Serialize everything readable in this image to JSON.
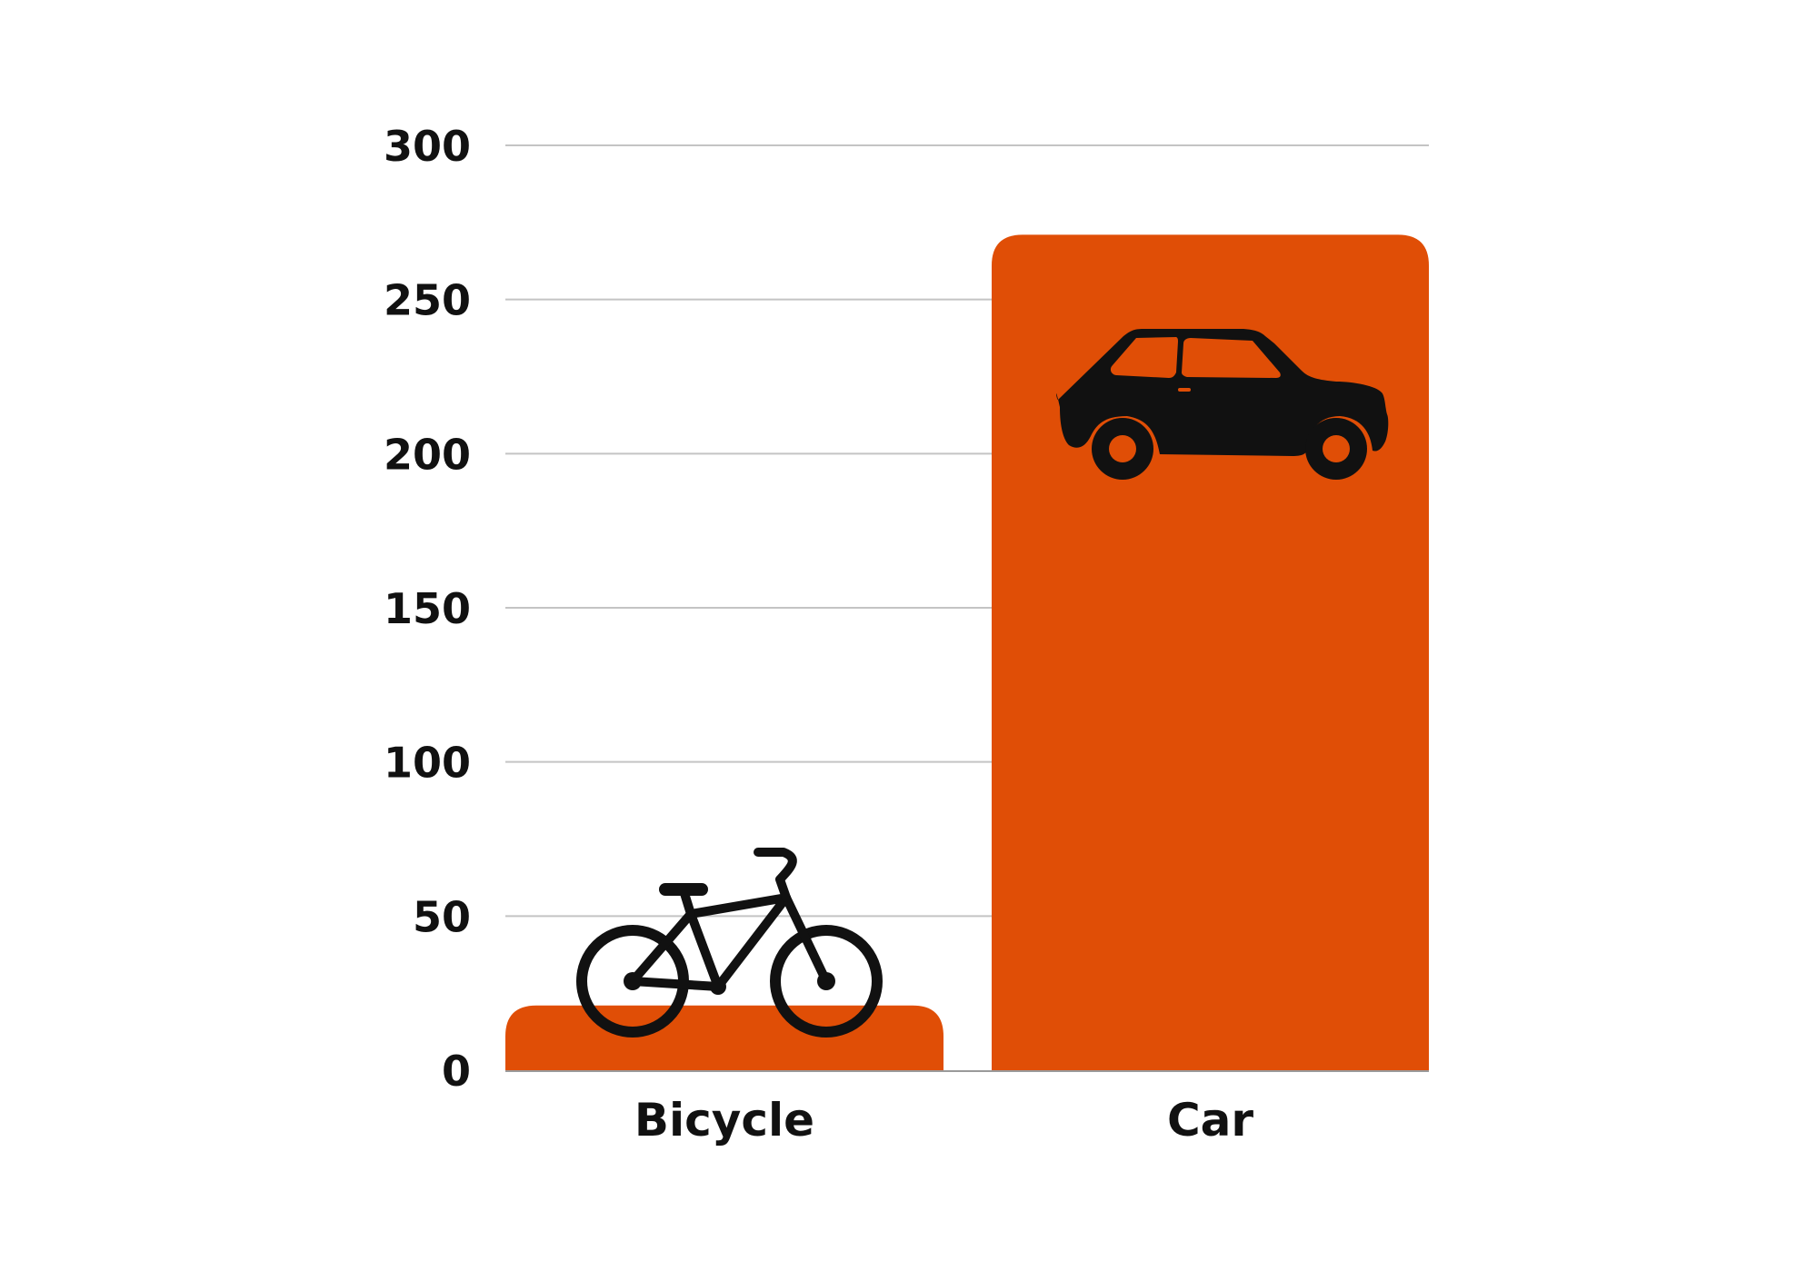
{
  "chart_data": {
    "type": "bar",
    "categories": [
      "Bicycle",
      "Car"
    ],
    "values": [
      21,
      271
    ],
    "ylim": [
      0,
      300
    ],
    "yticks": [
      "0",
      "50",
      "100",
      "150",
      "200",
      "250",
      "300"
    ],
    "grid": true,
    "bar_color": "#E04E06",
    "bar_icons": [
      "bicycle-icon",
      "car-icon"
    ],
    "title": "",
    "xlabel": "",
    "ylabel": ""
  }
}
